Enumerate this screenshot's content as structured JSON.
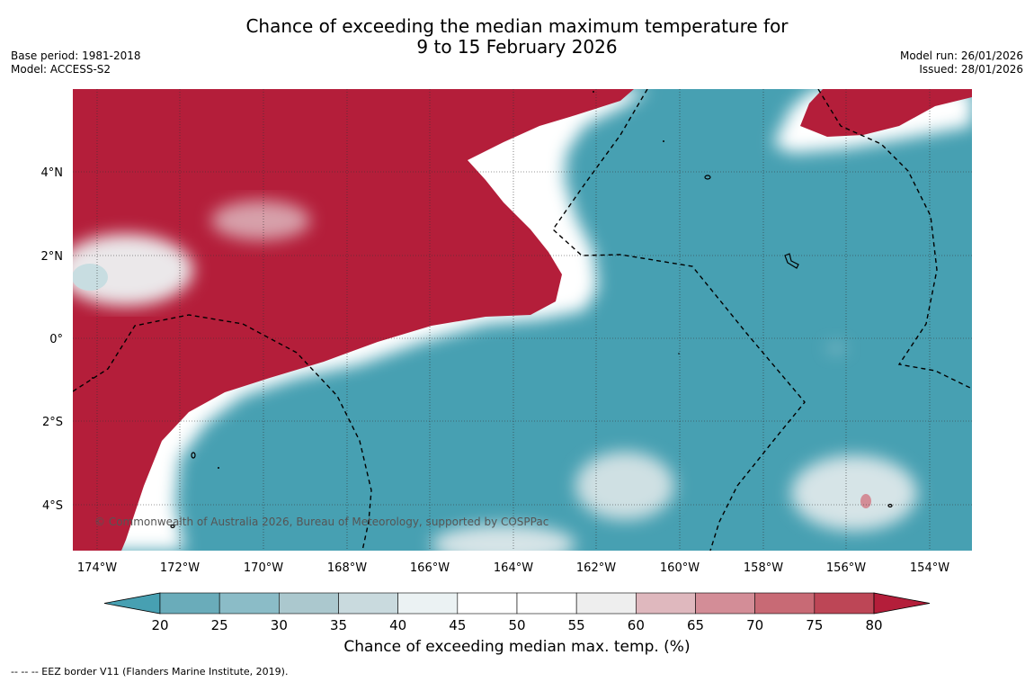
{
  "title": {
    "line1": "Chance of exceeding the median maximum temperature for",
    "line2": "9 to 15 February 2026"
  },
  "meta_left": {
    "base_period": "Base period: 1981-2018",
    "model": "Model: ACCESS-S2"
  },
  "meta_right": {
    "model_run": "Model run: 26/01/2026",
    "issued": "Issued: 28/01/2026"
  },
  "map": {
    "lon_labels": [
      "174°W",
      "172°W",
      "170°W",
      "168°W",
      "166°W",
      "164°W",
      "162°W",
      "160°W",
      "158°W",
      "156°W",
      "154°W"
    ],
    "lat_labels": [
      "4°N",
      "2°N",
      "0°",
      "2°S",
      "4°S"
    ],
    "copyright": "© Commonwealth of Australia 2026, Bureau of Meteorology, supported by COSPPac",
    "colors": {
      "above": "#b41e3a",
      "below": "#47a0b2",
      "neutral": "#ffffff"
    }
  },
  "colorbar": {
    "ticks": [
      "20",
      "25",
      "30",
      "35",
      "40",
      "45",
      "50",
      "55",
      "60",
      "65",
      "70",
      "75",
      "80"
    ],
    "colors": [
      "#47a0b2",
      "#6aacba",
      "#8bbcc7",
      "#abc8ce",
      "#c9dade",
      "#ebf2f3",
      "#ffffff",
      "#ffffff",
      "#eeeeee",
      "#dfb8be",
      "#d38d97",
      "#c86a75",
      "#bd4656",
      "#b41e3a"
    ],
    "label": "Chance of exceeding median max. temp. (%)"
  },
  "footer": "--  --  -- EEZ border V11 (Flanders Marine Institute, 2019)."
}
